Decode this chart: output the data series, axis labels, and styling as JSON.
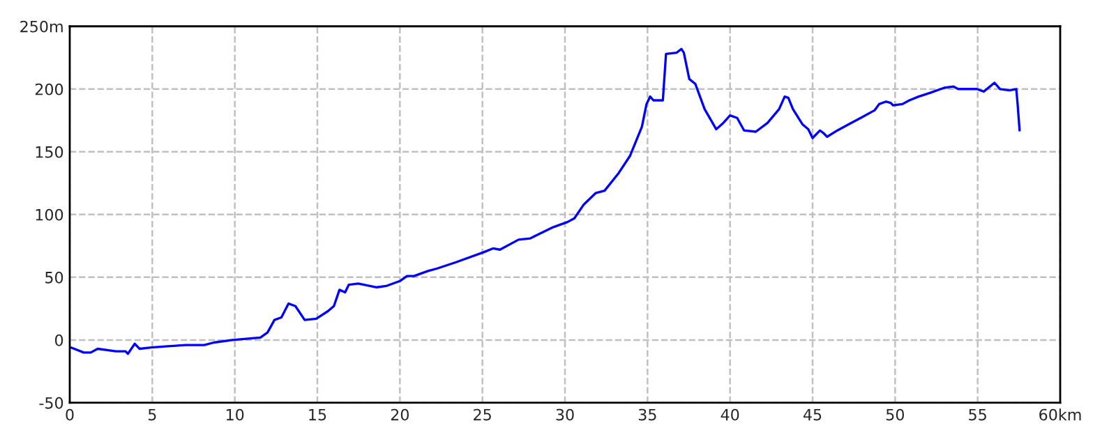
{
  "chart_data": {
    "type": "line",
    "x": [
      0.08,
      0.85,
      1.27,
      1.69,
      2.8,
      3.38,
      3.52,
      3.94,
      4.23,
      4.93,
      5.92,
      7.02,
      8.15,
      8.73,
      9.86,
      10.7,
      11.55,
      11.98,
      12.4,
      12.82,
      13.25,
      13.67,
      14.23,
      14.93,
      15.64,
      16.0,
      16.34,
      16.68,
      16.9,
      17.47,
      18.6,
      19.16,
      20.0,
      20.43,
      20.85,
      21.7,
      22.26,
      23.4,
      25.08,
      25.64,
      26.06,
      27.19,
      27.9,
      29.3,
      30.15,
      30.57,
      31.14,
      31.85,
      32.4,
      33.25,
      33.95,
      34.66,
      34.94,
      35.16,
      35.36,
      35.93,
      35.98,
      36.12,
      36.77,
      37.05,
      37.2,
      37.53,
      37.9,
      38.46,
      39.16,
      39.59,
      40.0,
      40.43,
      40.85,
      41.56,
      42.27,
      42.97,
      43.31,
      43.53,
      43.81,
      44.38,
      44.74,
      45.0,
      45.45,
      45.65,
      45.88,
      46.5,
      47.06,
      47.91,
      48.75,
      49.03,
      49.45,
      49.73,
      49.87,
      50.44,
      50.86,
      51.42,
      52.13,
      52.97,
      53.54,
      53.82,
      54.95,
      55.37,
      56.02,
      56.36,
      56.92,
      57.34,
      57.42,
      57.54
    ],
    "series": [
      {
        "color": "#0000ff",
        "values": [
          -6,
          -10,
          -10,
          -7,
          -9,
          -9,
          -11,
          -3,
          -7,
          -6,
          -5,
          -4,
          -4,
          -2,
          0,
          1,
          2,
          6,
          16,
          18,
          29,
          27,
          16,
          17,
          23,
          27,
          40,
          38,
          44,
          45,
          42,
          43,
          47,
          51,
          51,
          55,
          57,
          62,
          70,
          73,
          72,
          80,
          81,
          90,
          94,
          97,
          108,
          117,
          119,
          133,
          147,
          170,
          188,
          194,
          191,
          191,
          201,
          228,
          229,
          232,
          229,
          208,
          204,
          184,
          168,
          173,
          179,
          177,
          167,
          166,
          173,
          184,
          194,
          193,
          184,
          172,
          168,
          161,
          167,
          165,
          162,
          167,
          171,
          177,
          183,
          188,
          190,
          189,
          187,
          188,
          191,
          194,
          197,
          201,
          202,
          200,
          200,
          198,
          205,
          200,
          199,
          200,
          188,
          167
        ]
      }
    ],
    "xlim": [
      0,
      60
    ],
    "ylim": [
      -50,
      250
    ],
    "xticks": [
      0,
      5,
      10,
      15,
      20,
      25,
      30,
      35,
      40,
      45,
      50,
      55,
      {
        "value": 60,
        "label": "60km"
      }
    ],
    "yticks": [
      -50,
      0,
      50,
      100,
      150,
      200,
      {
        "value": 250,
        "label": "250m"
      }
    ],
    "grid": true,
    "line_style": "solid",
    "marker": "none",
    "legend": false
  }
}
